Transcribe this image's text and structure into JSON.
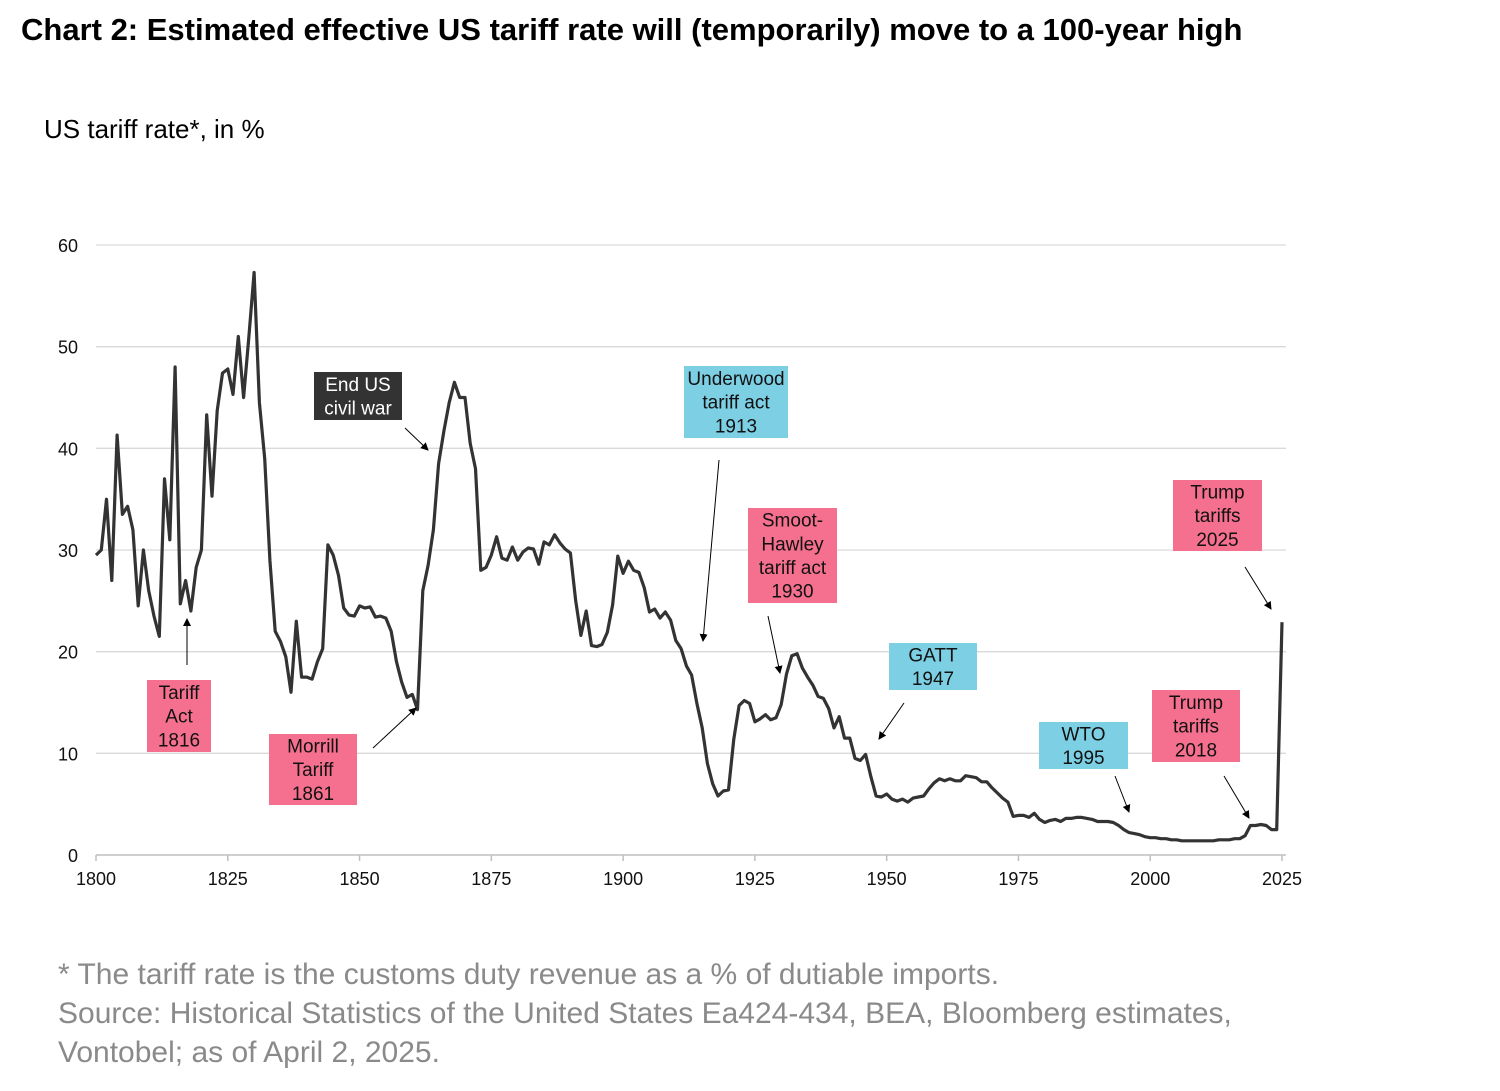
{
  "title": "Chart 2: Estimated effective US tariff rate will (temporarily) move to a 100-year high",
  "footnote": [
    "* The tariff rate is the customs duty revenue as a % of dutiable imports.",
    "Source: Historical Statistics of the United States Ea424-434, BEA, Bloomberg estimates,",
    "Vontobel; as of April 2, 2025."
  ],
  "colors": {
    "line": "#333333",
    "pink": "#f5708f",
    "cyan": "#7dd0e4",
    "dark": "#333333",
    "grid": "#d9d9d9",
    "footnote": "#8a8a8a"
  },
  "chart_data": {
    "type": "line",
    "title": "Chart 2: Estimated effective US tariff rate will (temporarily) move to a 100-year high",
    "ylabel": "US tariff rate*, in %",
    "xlabel": "",
    "xlim": [
      1800,
      2025
    ],
    "ylim": [
      0,
      60
    ],
    "grid": true,
    "xticks": [
      1800,
      1825,
      1850,
      1875,
      1900,
      1925,
      1950,
      1975,
      2000,
      2025
    ],
    "yticks": [
      0,
      10,
      20,
      30,
      40,
      50,
      60
    ],
    "x_start": 1800,
    "values": [
      29.5,
      30,
      35,
      27,
      41.3,
      33.5,
      34.3,
      32,
      24.5,
      30,
      26,
      23.5,
      21.5,
      37,
      31,
      48,
      24.7,
      27,
      24,
      28.3,
      30,
      43.3,
      35.3,
      43.7,
      47.4,
      47.8,
      45.3,
      51,
      45,
      51,
      57.3,
      44.5,
      39,
      29,
      22,
      21,
      19.5,
      16,
      23,
      17.5,
      17.5,
      17.3,
      19,
      20.3,
      30.5,
      29.5,
      27.5,
      24.3,
      23.6,
      23.5,
      24.5,
      24.3,
      24.4,
      23.4,
      23.5,
      23.3,
      22,
      19,
      17,
      15.5,
      15.8,
      14.3,
      26,
      28.5,
      32,
      38.5,
      41.7,
      44.5,
      46.5,
      45,
      45,
      40.5,
      38,
      28,
      28.3,
      29.5,
      31.3,
      29.2,
      29,
      30.3,
      29,
      29.8,
      30.2,
      30.1,
      28.6,
      30.8,
      30.5,
      31.5,
      30.7,
      30.1,
      29.7,
      25,
      21.6,
      24,
      20.6,
      20.5,
      20.7,
      21.9,
      24.6,
      29.4,
      27.7,
      28.9,
      28,
      27.8,
      26.3,
      23.9,
      24.2,
      23.3,
      23.9,
      23.1,
      21.1,
      20.3,
      18.6,
      17.7,
      14.9,
      12.5,
      9,
      7,
      5.8,
      6.3,
      6.4,
      11.4,
      14.7,
      15.2,
      14.9,
      13.1,
      13.4,
      13.8,
      13.3,
      13.5,
      14.8,
      17.8,
      19.6,
      19.8,
      18.4,
      17.5,
      16.7,
      15.6,
      15.4,
      14.4,
      12.5,
      13.6,
      11.5,
      11.5,
      9.5,
      9.3,
      9.9,
      7.7,
      5.8,
      5.7,
      6,
      5.5,
      5.3,
      5.5,
      5.2,
      5.6,
      5.7,
      5.8,
      6.5,
      7.1,
      7.5,
      7.3,
      7.5,
      7.3,
      7.3,
      7.8,
      7.7,
      7.6,
      7.2,
      7.2,
      6.6,
      6.1,
      5.6,
      5.2,
      3.8,
      3.9,
      3.9,
      3.7,
      4.1,
      3.5,
      3.2,
      3.4,
      3.5,
      3.3,
      3.6,
      3.6,
      3.7,
      3.7,
      3.6,
      3.5,
      3.3,
      3.3,
      3.3,
      3.2,
      2.9,
      2.5,
      2.2,
      2.1,
      2,
      1.8,
      1.7,
      1.7,
      1.6,
      1.6,
      1.5,
      1.5,
      1.4,
      1.4,
      1.4,
      1.4,
      1.4,
      1.4,
      1.4,
      1.5,
      1.5,
      1.5,
      1.6,
      1.6,
      1.9,
      2.9,
      2.9,
      3.0,
      2.9,
      2.5,
      2.5,
      22.9
    ],
    "annotations": [
      {
        "lines": [
          "End US",
          "civil war"
        ],
        "style": "dark",
        "year": 1865
      },
      {
        "lines": [
          "Underwood",
          "tariff act",
          "1913"
        ],
        "style": "cyan",
        "year": 1913
      },
      {
        "lines": [
          "Smoot-",
          "Hawley",
          "tariff act",
          "1930"
        ],
        "style": "pink",
        "year": 1930
      },
      {
        "lines": [
          "Trump",
          "tariffs",
          "2025"
        ],
        "style": "pink",
        "year": 2025
      },
      {
        "lines": [
          "Tariff",
          "Act",
          "1816"
        ],
        "style": "pink",
        "year": 1816
      },
      {
        "lines": [
          "Morrill",
          "Tariff",
          "1861"
        ],
        "style": "pink",
        "year": 1861
      },
      {
        "lines": [
          "GATT",
          "1947"
        ],
        "style": "cyan",
        "year": 1947
      },
      {
        "lines": [
          "WTO",
          "1995"
        ],
        "style": "cyan",
        "year": 1995
      },
      {
        "lines": [
          "Trump",
          "tariffs",
          "2018"
        ],
        "style": "pink",
        "year": 2018
      }
    ]
  }
}
